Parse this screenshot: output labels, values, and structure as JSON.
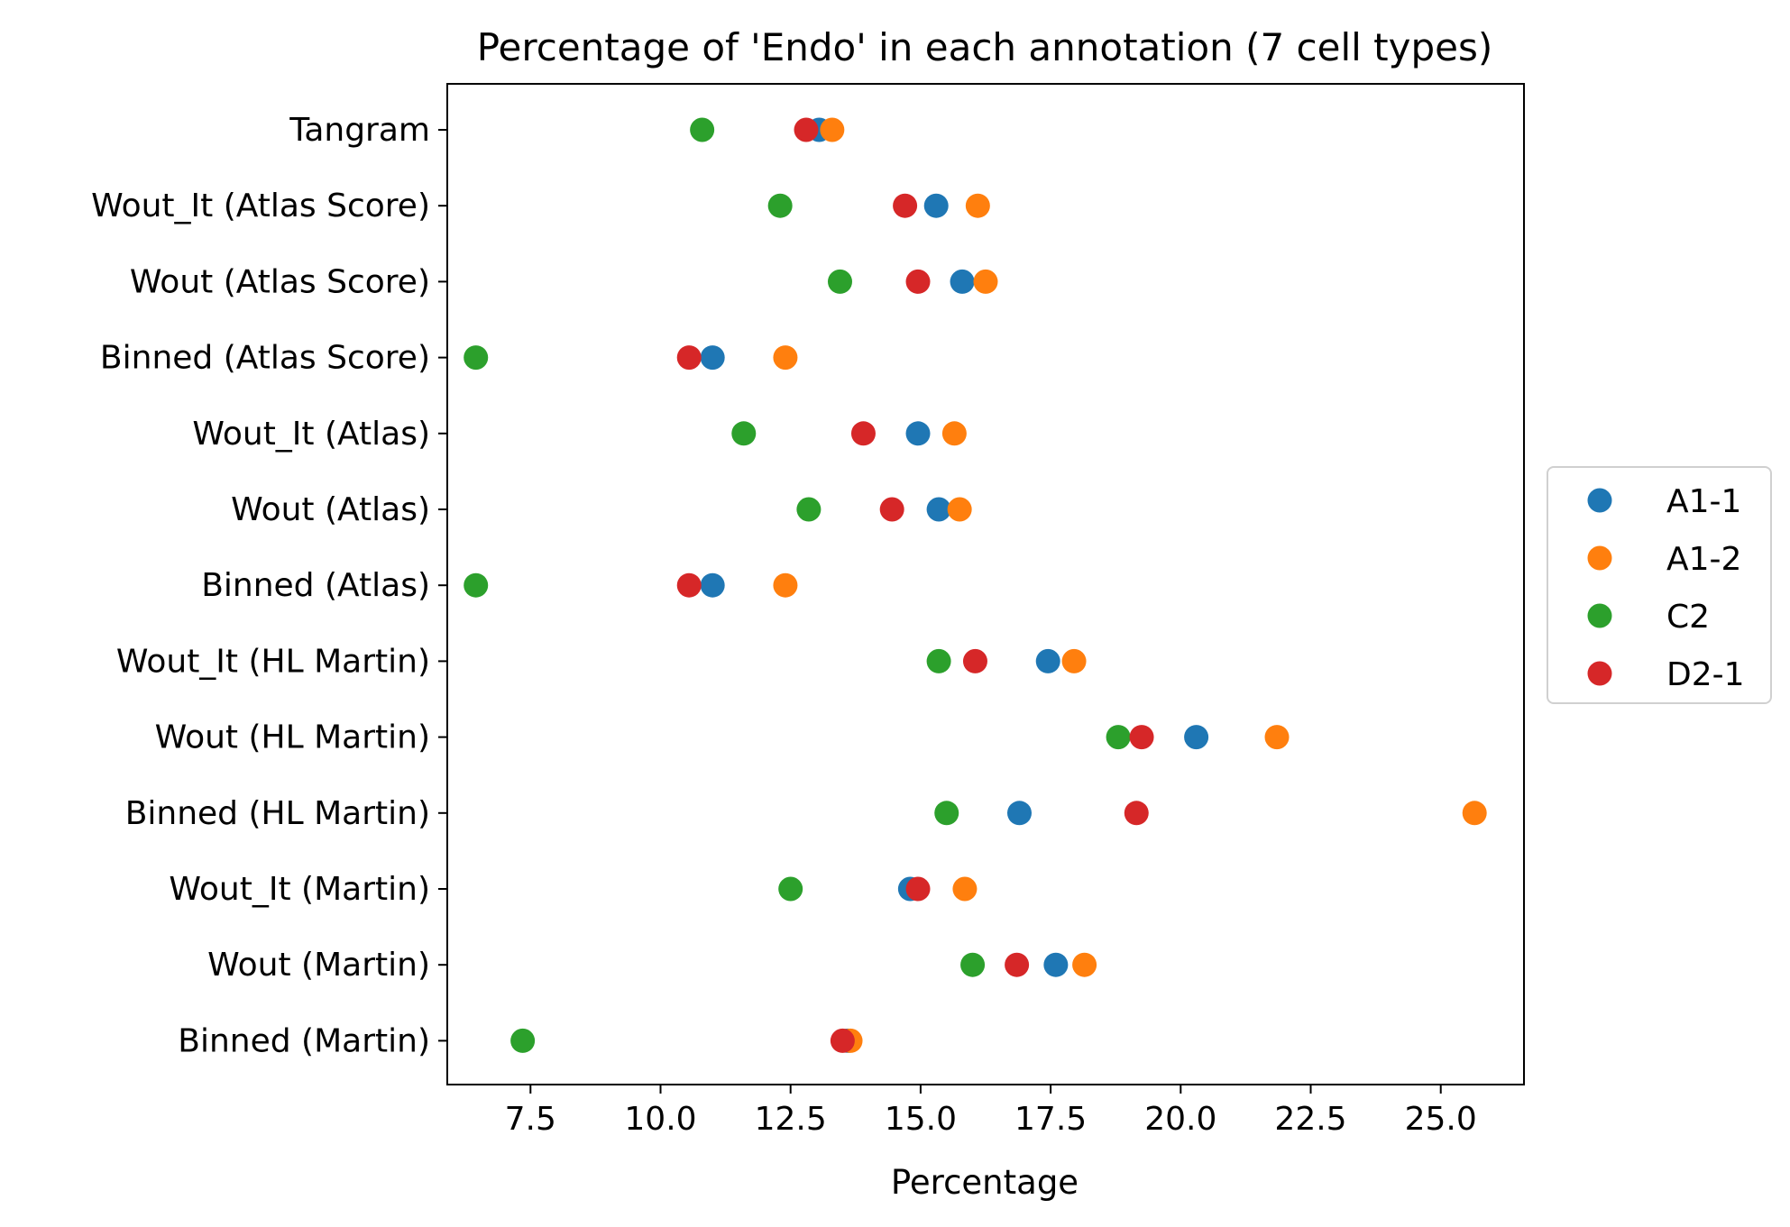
{
  "chart_data": {
    "type": "scatter",
    "title": "Percentage of 'Endo' in each annotation (7 cell types)",
    "xlabel": "Percentage",
    "ylabel": "",
    "xlim": [
      5.9,
      26.6
    ],
    "xticks": [
      7.5,
      10.0,
      12.5,
      15.0,
      17.5,
      20.0,
      22.5,
      25.0
    ],
    "xtick_labels": [
      "7.5",
      "10.0",
      "12.5",
      "15.0",
      "17.5",
      "20.0",
      "22.5",
      "25.0"
    ],
    "categories": [
      "Tangram",
      "Wout_It (Atlas Score)",
      "Wout (Atlas Score)",
      "Binned (Atlas Score)",
      "Wout_It (Atlas)",
      "Wout (Atlas)",
      "Binned (Atlas)",
      "Wout_It (HL Martin)",
      "Wout (HL Martin)",
      "Binned (HL Martin)",
      "Wout_It (Martin)",
      "Wout (Martin)",
      "Binned (Martin)"
    ],
    "series": [
      {
        "name": "A1-1",
        "color": "#1f77b4",
        "values": [
          13.05,
          15.3,
          15.8,
          11.0,
          14.95,
          15.35,
          11.0,
          17.45,
          20.3,
          16.9,
          14.8,
          17.6,
          13.6
        ]
      },
      {
        "name": "A1-2",
        "color": "#ff7f0e",
        "values": [
          13.3,
          16.1,
          16.25,
          12.4,
          15.65,
          15.75,
          12.4,
          17.95,
          21.85,
          25.65,
          15.85,
          18.15,
          13.65
        ]
      },
      {
        "name": "C2",
        "color": "#2ca02c",
        "values": [
          10.8,
          12.3,
          13.45,
          6.45,
          11.6,
          12.85,
          6.45,
          15.35,
          18.8,
          15.5,
          12.5,
          16.0,
          7.35
        ]
      },
      {
        "name": "D2-1",
        "color": "#d62728",
        "values": [
          12.8,
          14.7,
          14.95,
          10.55,
          13.9,
          14.45,
          10.55,
          16.05,
          19.25,
          19.15,
          14.95,
          16.85,
          13.5
        ]
      }
    ],
    "grid": false,
    "legend_position": "center-right"
  }
}
